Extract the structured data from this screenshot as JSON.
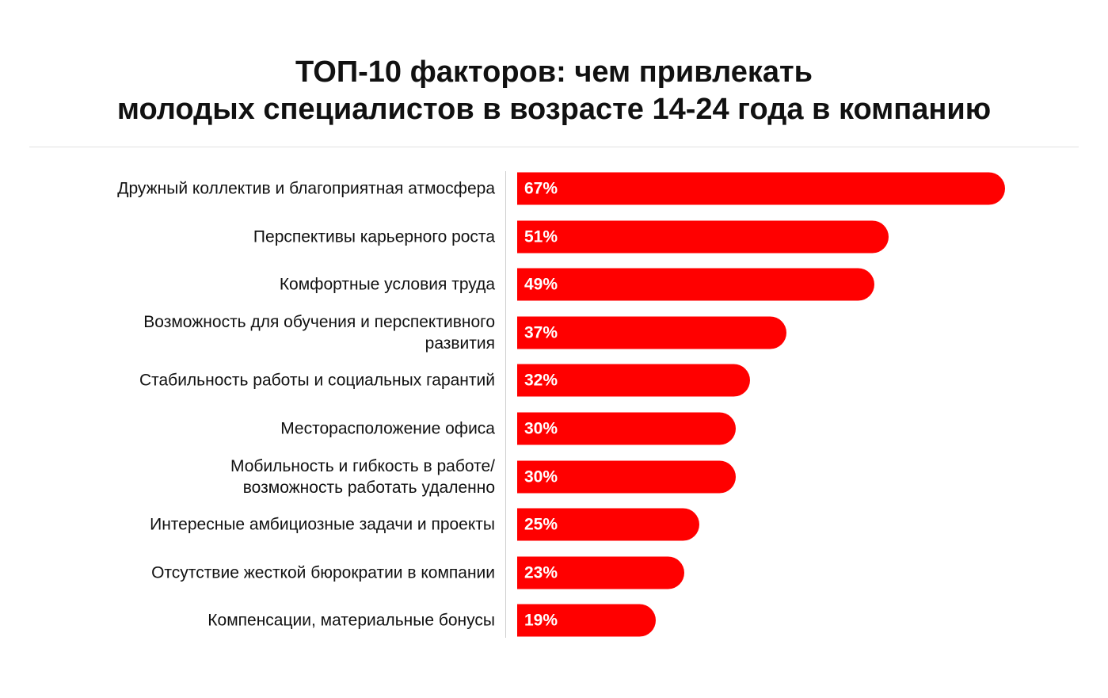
{
  "chart_data": {
    "type": "bar",
    "orientation": "horizontal",
    "title": "ТОП-10 факторов: чем привлекать молодых специалистов в возрасте 14-24 года в компанию",
    "title_lines": [
      "ТОП-10 факторов: чем привлекать",
      "молодых специалистов в возрасте 14-24 года в компанию"
    ],
    "categories": [
      "Дружный коллектив и благоприятная атмосфера",
      "Перспективы карьерного роста",
      "Комфортные условия труда",
      "Возможность для обучения и перспективного развития",
      "Стабильность работы и социальных гарантий",
      "Месторасположение офиса",
      "Мобильность и гибкость в работе/ возможность работать удаленно",
      "Интересные амбициозные задачи и проекты",
      "Отсутствие жесткой бюрократии в компании",
      "Компенсации, материальные бонусы"
    ],
    "values": [
      67,
      51,
      49,
      37,
      32,
      30,
      30,
      25,
      23,
      19
    ],
    "data_labels": [
      "67%",
      "51%",
      "49%",
      "37%",
      "32%",
      "30%",
      "30%",
      "25%",
      "23%",
      "19%"
    ],
    "unit": "%",
    "bar_color": "#ff0000",
    "grid": false,
    "legend": "none"
  }
}
